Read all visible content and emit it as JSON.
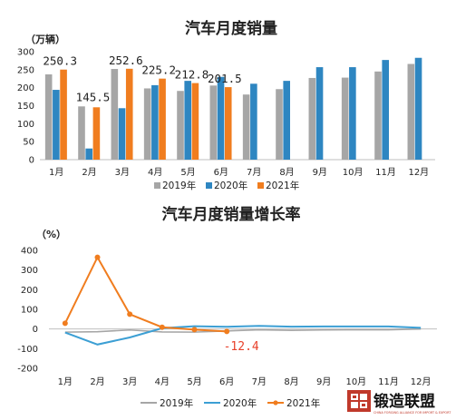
{
  "chart_data": [
    {
      "type": "bar",
      "title": "汽车月度销量",
      "unit_label": "（万辆）",
      "categories": [
        "1月",
        "2月",
        "3月",
        "4月",
        "5月",
        "6月",
        "7月",
        "8月",
        "9月",
        "10月",
        "11月",
        "12月"
      ],
      "ylim": [
        0,
        300
      ],
      "yticks": [
        "0",
        "50",
        "100",
        "150",
        "200",
        "250",
        "300"
      ],
      "series": [
        {
          "name": "2019年",
          "color": "#a6a6a6",
          "values": [
            237,
            148,
            252,
            198,
            191,
            206,
            181,
            196,
            227,
            228,
            245,
            266
          ]
        },
        {
          "name": "2020年",
          "color": "#2e86c1",
          "values": [
            194,
            31,
            143,
            207,
            219,
            230,
            211,
            219,
            257,
            257,
            277,
            283
          ]
        },
        {
          "name": "2021年",
          "color": "#f07d1f",
          "values": [
            250.3,
            145.5,
            252.6,
            225.2,
            212.8,
            201.5,
            null,
            null,
            null,
            null,
            null,
            null
          ]
        }
      ],
      "data_labels": [
        "250.3",
        "145.5",
        "252.6",
        "225.2",
        "212.8",
        "201.5"
      ],
      "legend": "bottom",
      "grid": false
    },
    {
      "type": "line",
      "title": "汽车月度销量增长率",
      "unit_label": "（%）",
      "categories": [
        "1月",
        "2月",
        "3月",
        "4月",
        "5月",
        "6月",
        "7月",
        "8月",
        "9月",
        "10月",
        "11月",
        "12月"
      ],
      "ylim": [
        -200,
        400
      ],
      "yticks": [
        "-200",
        "-100",
        "0",
        "100",
        "200",
        "300",
        "400"
      ],
      "series": [
        {
          "name": "2019年",
          "color": "#a6a6a6",
          "values": [
            -16,
            -14,
            -5,
            -15,
            -16,
            -10,
            -4,
            -7,
            -5,
            -4,
            -4,
            0
          ]
        },
        {
          "name": "2020年",
          "color": "#3c9fd4",
          "values": [
            -18,
            -79,
            -43,
            4,
            14,
            11,
            16,
            12,
            13,
            13,
            13,
            6
          ]
        },
        {
          "name": "2021年",
          "color": "#f07d1f",
          "values": [
            29,
            365,
            75,
            9,
            -3,
            -12.4,
            null,
            null,
            null,
            null,
            null,
            null
          ]
        }
      ],
      "annotation": "-12.4",
      "legend": "bottom",
      "grid": false
    }
  ],
  "logo": {
    "text": "锻造联盟",
    "subtext": "CHINA FORGING ALLIANCE FOR IMPORT & EXPORT"
  }
}
